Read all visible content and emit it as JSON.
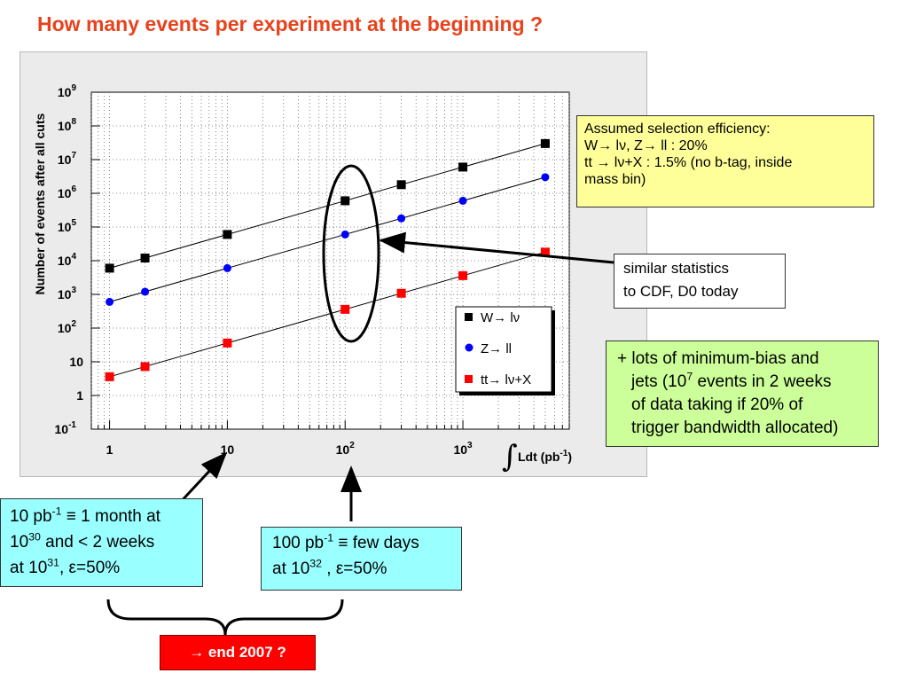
{
  "slide": {
    "title": "How many events per experiment at the beginning ?"
  },
  "colors": {
    "title": "#e8421c",
    "w_series": "#000000",
    "z_series": "#0000ff",
    "tt_series": "#ff0000",
    "efficiency_box": "#ffff99",
    "minbias_box": "#ccff99",
    "cdf_box": "#99ffff",
    "end_box": "#ff0000"
  },
  "chart_data": {
    "type": "scatter",
    "log_x": true,
    "log_y": true,
    "xlim": [
      0.7,
      8000
    ],
    "ylim": [
      0.1,
      1000000000
    ],
    "xlabel": "Ldt (pb",
    "xlabel_sup": "-1",
    "xlabel_close": ")",
    "xlabel_integral": "∫",
    "ylabel": "Number of events after all cuts",
    "grid": true,
    "legend_position": "right-inside",
    "x_ticks": [
      {
        "value": 1,
        "base": "1",
        "exp": ""
      },
      {
        "value": 10,
        "base": "10",
        "exp": ""
      },
      {
        "value": 100,
        "base": "10",
        "exp": "2"
      },
      {
        "value": 1000,
        "base": "10",
        "exp": "3"
      }
    ],
    "y_ticks": [
      {
        "value": 0.1,
        "base": "10",
        "exp": "-1"
      },
      {
        "value": 1,
        "base": "1",
        "exp": ""
      },
      {
        "value": 10,
        "base": "10",
        "exp": ""
      },
      {
        "value": 100,
        "base": "10",
        "exp": "2"
      },
      {
        "value": 1000,
        "base": "10",
        "exp": "3"
      },
      {
        "value": 10000,
        "base": "10",
        "exp": "4"
      },
      {
        "value": 100000,
        "base": "10",
        "exp": "5"
      },
      {
        "value": 1000000,
        "base": "10",
        "exp": "6"
      },
      {
        "value": 10000000,
        "base": "10",
        "exp": "7"
      },
      {
        "value": 100000000,
        "base": "10",
        "exp": "8"
      },
      {
        "value": 1000000000,
        "base": "10",
        "exp": "9"
      }
    ],
    "series": [
      {
        "key": "w",
        "name": "W→ lν",
        "marker": "square",
        "color": "#000000",
        "x": [
          1,
          2,
          10,
          100,
          300,
          1000,
          5000
        ],
        "y": [
          6000,
          12000,
          60000,
          600000,
          1800000,
          6000000,
          30000000
        ]
      },
      {
        "key": "z",
        "name": "Z→ ll",
        "marker": "circle",
        "color": "#0000ff",
        "x": [
          1,
          2,
          10,
          100,
          300,
          1000,
          5000
        ],
        "y": [
          600,
          1200,
          6000,
          60000,
          180000,
          600000,
          3000000
        ]
      },
      {
        "key": "tt",
        "name": "tt→ lν+X",
        "marker": "square",
        "color": "#ff0000",
        "x": [
          1,
          2,
          10,
          100,
          300,
          1000,
          5000
        ],
        "y": [
          3.6,
          7.2,
          36,
          360,
          1080,
          3600,
          18000
        ]
      }
    ]
  },
  "efficiency_box": {
    "line1": "Assumed selection efficiency:",
    "line2": "W→ lν, Z→ ll : 20%",
    "line3": "tt → lν+X : 1.5% (no b-tag, inside",
    "line4": "mass bin)"
  },
  "similar_box": {
    "line1": "similar statistics",
    "line2": "to CDF, D0 today"
  },
  "minbias_box": {
    "line1": "+ lots of minimum-bias and",
    "line2a": "jets (10",
    "line2_sup": "7",
    "line2b": " events in 2 weeks",
    "line3": "of data taking if 20% of",
    "line4": "trigger bandwidth allocated)"
  },
  "cdf1_box": {
    "line1a": "10 pb",
    "line1_sup": "-1",
    "line1b": " ≡ 1 month at",
    "line2a": "10",
    "line2_sup": "30",
    "line2b": " and < 2 weeks",
    "line3a": "at 10",
    "line3_sup": "31",
    "line3b": ",  ε=50%"
  },
  "cdf2_box": {
    "line1a": "100 pb",
    "line1_sup": "-1",
    "line1b": " ≡ few days",
    "line2a": "at 10",
    "line2_sup": "32",
    "line2b": " ,  ε=50%"
  },
  "end_box": {
    "label": "→ end 2007 ?"
  }
}
